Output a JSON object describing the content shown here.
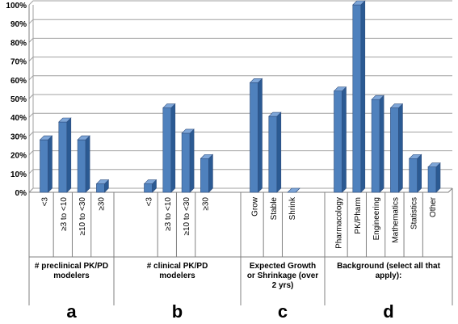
{
  "chart_data": {
    "type": "bar",
    "ylim": [
      0,
      100
    ],
    "yticks": [
      "0%",
      "10%",
      "20%",
      "30%",
      "40%",
      "50%",
      "60%",
      "70%",
      "80%",
      "90%",
      "100%"
    ],
    "bar_color": "#4f81bd",
    "grid": true,
    "groups": [
      {
        "letter": "a",
        "label_lines": [
          "# preclinical PK/PD",
          "modelers"
        ],
        "categories": [
          "<3",
          "≥3 to <10",
          "≥10 to <30",
          "≥30"
        ],
        "values": [
          28,
          37.5,
          28,
          4.5
        ]
      },
      {
        "letter": "b",
        "label_lines": [
          "# clinical PK/PD",
          "modelers"
        ],
        "categories": [
          "<3",
          "≥3 to <10",
          "≥10 to <30",
          "≥30"
        ],
        "values": [
          4.5,
          45,
          31.5,
          18
        ]
      },
      {
        "letter": "c",
        "label_lines": [
          "Expected Growth",
          "or Shrinkage (over",
          "2 yrs)"
        ],
        "categories": [
          "Grow",
          "Stable",
          "Shrink"
        ],
        "values": [
          58.5,
          40.5,
          0
        ]
      },
      {
        "letter": "d",
        "label_lines": [
          "Background (select all that",
          "apply):"
        ],
        "categories": [
          "Pharmacology",
          "PK/Pharm",
          "Engineering",
          "Mathematics",
          "Statistics",
          "Other"
        ],
        "values": [
          54,
          100,
          49.5,
          45,
          18,
          13.5
        ]
      }
    ]
  }
}
